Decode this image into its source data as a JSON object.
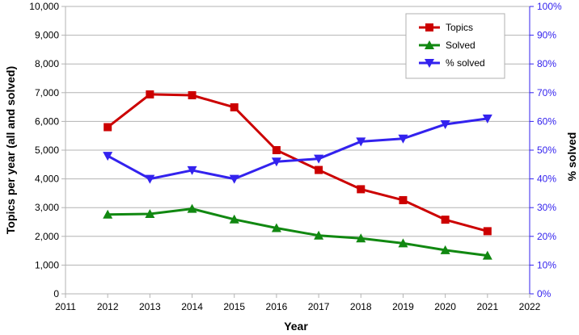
{
  "chart_data": {
    "type": "line",
    "x": [
      2012,
      2013,
      2014,
      2015,
      2016,
      2017,
      2018,
      2019,
      2020,
      2021
    ],
    "xlim": [
      2011,
      2022
    ],
    "x_ticks": [
      "2011",
      "2012",
      "2013",
      "2014",
      "2015",
      "2016",
      "2017",
      "2018",
      "2019",
      "2020",
      "2021",
      "2022"
    ],
    "xlabel": "Year",
    "ylabel_left": "Topics per year (all and solved)",
    "ylabel_right": "% solved",
    "ylim_left": [
      0,
      10000
    ],
    "ylim_right": [
      0,
      100
    ],
    "y_ticks_left": [
      "0",
      "1,000",
      "2,000",
      "3,000",
      "4,000",
      "5,000",
      "6,000",
      "7,000",
      "8,000",
      "9,000",
      "10,000"
    ],
    "y_ticks_right": [
      "0%",
      "10%",
      "20%",
      "30%",
      "40%",
      "50%",
      "60%",
      "70%",
      "80%",
      "90%",
      "100%"
    ],
    "grid": "horizontal",
    "legend_position": "top-right",
    "series": [
      {
        "name": "Topics",
        "axis": "left",
        "color": "#cc0000",
        "marker": "square",
        "values": [
          5800,
          6940,
          6910,
          6490,
          5000,
          4310,
          3640,
          3260,
          2580,
          2180
        ]
      },
      {
        "name": "Solved",
        "axis": "left",
        "color": "#118811",
        "marker": "triangle-up",
        "values": [
          2760,
          2780,
          2960,
          2590,
          2290,
          2030,
          1930,
          1760,
          1520,
          1330
        ]
      },
      {
        "name": "% solved",
        "axis": "right",
        "color": "#3322ee",
        "marker": "triangle-down",
        "values": [
          48,
          40,
          43,
          40,
          46,
          47,
          53,
          54,
          59,
          61
        ]
      }
    ]
  }
}
